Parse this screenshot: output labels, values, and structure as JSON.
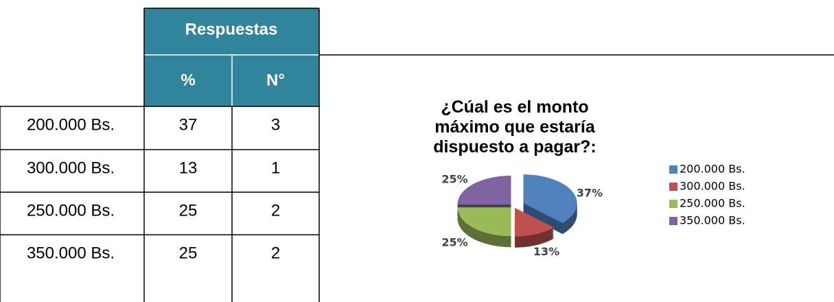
{
  "table": {
    "header": "Respuestas",
    "columns": [
      "%",
      "N°"
    ],
    "rows": [
      [
        "200.000 Bs.",
        37,
        3
      ],
      [
        "300.000 Bs.",
        13,
        1
      ],
      [
        "250.000 Bs.",
        25,
        2
      ],
      [
        "350.000 Bs.",
        25,
        2
      ]
    ]
  },
  "chart_data": {
    "type": "pie",
    "title": "¿Cúal es el monto máximo que estaría dispuesto a pagar?:",
    "categories": [
      "200.000 Bs.",
      "300.000 Bs.",
      "250.000 Bs.",
      "350.000 Bs."
    ],
    "values": [
      37,
      13,
      25,
      25
    ],
    "value_labels": [
      "37%",
      "13%",
      "25%",
      "25%"
    ],
    "colors": [
      "#4f81bd",
      "#c0504d",
      "#9bbb59",
      "#8064a2"
    ],
    "legend": "right"
  }
}
